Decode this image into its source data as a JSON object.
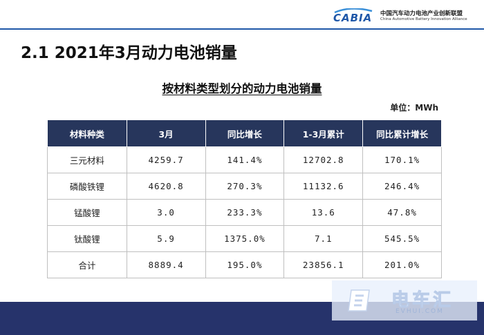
{
  "header": {
    "logo_word": "CABIA",
    "org_name_cn": "中国汽车动力电池产业创新联盟",
    "org_name_en": "China Automotive Battery Innovation Alliance"
  },
  "slide_title": "2.1  2021年3月动力电池销量",
  "table": {
    "title": "按材料类型划分的动力电池销量",
    "unit": "单位：MWh",
    "columns": [
      "材料种类",
      "3月",
      "同比增长",
      "1-3月累计",
      "同比累计增长"
    ],
    "rows": [
      [
        "三元材料",
        "4259.7",
        "141.4%",
        "12702.8",
        "170.1%"
      ],
      [
        "磷酸铁锂",
        "4620.8",
        "270.3%",
        "11132.6",
        "246.4%"
      ],
      [
        "锰酸锂",
        "3.0",
        "233.3%",
        "13.6",
        "47.8%"
      ],
      [
        "钛酸锂",
        "5.9",
        "1375.0%",
        "7.1",
        "545.5%"
      ],
      [
        "合计",
        "8889.4",
        "195.0%",
        "23856.1",
        "201.0%"
      ]
    ]
  },
  "watermark": {
    "name_cn": "电车汇",
    "domain": "EVHUI.COM"
  },
  "colors": {
    "header_fill": "#27365c",
    "footer_band": "#26336b",
    "accent": "#1f57a8"
  }
}
